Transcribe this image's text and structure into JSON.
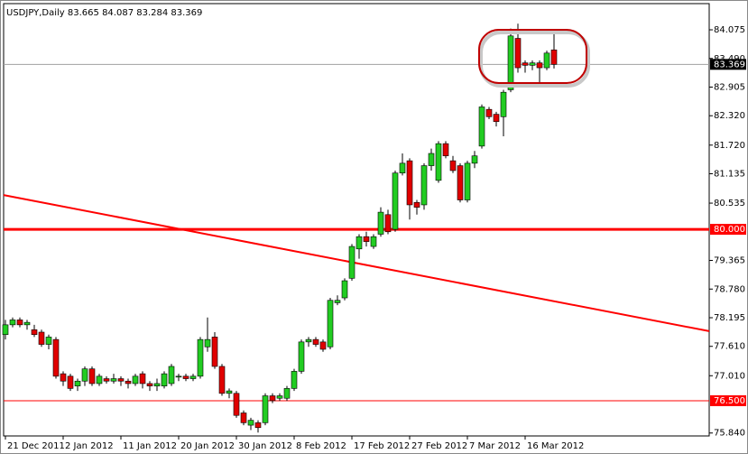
{
  "chart_data": {
    "type": "candlestick",
    "title": "USDJPY,Daily  83.665 84.087 83.284 83.369",
    "categories": [
      "21 Dec 2011",
      null,
      null,
      null,
      null,
      null,
      null,
      null,
      "2 Jan 2012",
      null,
      null,
      null,
      null,
      null,
      null,
      null,
      "11 Jan 2012",
      null,
      null,
      null,
      null,
      null,
      null,
      null,
      "20 Jan 2012",
      null,
      null,
      null,
      null,
      null,
      null,
      null,
      "30 Jan 2012",
      null,
      null,
      null,
      null,
      null,
      null,
      null,
      "8 Feb 2012",
      null,
      null,
      null,
      null,
      null,
      null,
      null,
      "17 Feb 2012",
      null,
      null,
      null,
      null,
      null,
      null,
      null,
      "27 Feb 2012",
      null,
      null,
      null,
      null,
      null,
      null,
      null,
      "7 Mar 2012",
      null,
      null,
      null,
      null,
      null,
      null,
      null,
      "16 Mar 2012",
      null,
      null,
      null,
      null
    ],
    "open": [
      77.85,
      78.05,
      78.15,
      78.05,
      77.95,
      77.9,
      77.65,
      77.75,
      77.05,
      77.0,
      76.8,
      76.9,
      77.15,
      76.85,
      76.95,
      76.9,
      76.95,
      76.9,
      76.85,
      77.05,
      76.85,
      76.8,
      76.8,
      76.85,
      77.0,
      77.0,
      76.95,
      77.0,
      77.6,
      77.8,
      77.2,
      76.65,
      76.65,
      76.25,
      76.0,
      76.05,
      76.05,
      76.6,
      76.55,
      76.55,
      76.75,
      77.1,
      77.7,
      77.75,
      77.7,
      77.6,
      78.5,
      78.6,
      79.0,
      79.6,
      79.85,
      79.65,
      79.9,
      80.3,
      80.0,
      81.15,
      81.4,
      80.55,
      80.5,
      81.3,
      81.0,
      81.75,
      81.4,
      81.3,
      80.6,
      81.35,
      81.7,
      82.45,
      82.35,
      82.3,
      82.85,
      83.9,
      83.4,
      83.35,
      83.4,
      83.3,
      83.665
    ],
    "high": [
      78.15,
      78.2,
      78.2,
      78.15,
      78.05,
      77.95,
      77.85,
      77.8,
      77.1,
      77.05,
      76.95,
      77.2,
      77.2,
      77.05,
      77.0,
      77.05,
      77.0,
      76.95,
      77.05,
      77.1,
      76.9,
      76.95,
      77.1,
      77.25,
      77.05,
      77.05,
      77.05,
      77.8,
      78.2,
      77.9,
      77.25,
      76.75,
      76.7,
      76.3,
      76.15,
      76.1,
      76.65,
      76.65,
      76.65,
      76.8,
      77.15,
      77.75,
      77.8,
      77.8,
      77.75,
      78.6,
      78.65,
      79.0,
      79.7,
      79.9,
      79.95,
      79.9,
      80.45,
      80.4,
      81.2,
      81.55,
      81.45,
      80.6,
      81.35,
      81.65,
      81.8,
      81.8,
      81.5,
      81.35,
      81.4,
      81.6,
      82.55,
      82.5,
      82.4,
      82.85,
      84.1,
      84.2,
      83.45,
      83.45,
      83.45,
      83.65,
      84.087
    ],
    "low": [
      77.75,
      78.0,
      78.0,
      77.95,
      77.8,
      77.6,
      77.55,
      76.95,
      76.8,
      76.7,
      76.7,
      76.8,
      76.8,
      76.8,
      76.85,
      76.85,
      76.8,
      76.75,
      76.8,
      76.75,
      76.7,
      76.7,
      76.75,
      76.8,
      76.9,
      76.9,
      76.9,
      76.95,
      77.5,
      77.15,
      76.6,
      76.55,
      76.15,
      76.0,
      75.9,
      75.85,
      76.0,
      76.45,
      76.5,
      76.5,
      76.7,
      77.05,
      77.6,
      77.6,
      77.5,
      77.55,
      78.45,
      78.55,
      78.95,
      79.4,
      79.65,
      79.6,
      79.85,
      79.9,
      79.95,
      81.1,
      80.2,
      80.3,
      80.4,
      81.2,
      80.95,
      81.45,
      81.15,
      80.55,
      80.55,
      81.25,
      81.65,
      82.25,
      82.1,
      81.9,
      82.8,
      83.2,
      83.2,
      83.25,
      83.0,
      83.25,
      83.284
    ],
    "close": [
      78.05,
      78.15,
      78.05,
      78.1,
      77.85,
      77.65,
      77.8,
      77.0,
      76.9,
      76.75,
      76.9,
      77.15,
      76.85,
      77.0,
      76.9,
      76.95,
      76.9,
      76.85,
      77.0,
      76.85,
      76.8,
      76.85,
      77.05,
      77.2,
      77.0,
      76.95,
      77.0,
      77.75,
      77.75,
      77.2,
      76.65,
      76.7,
      76.2,
      76.05,
      76.1,
      75.95,
      76.6,
      76.5,
      76.6,
      76.75,
      77.1,
      77.7,
      77.75,
      77.65,
      77.55,
      78.55,
      78.55,
      78.95,
      79.65,
      79.85,
      79.75,
      79.85,
      80.35,
      79.95,
      81.15,
      81.35,
      80.5,
      80.45,
      81.3,
      81.55,
      81.75,
      81.5,
      81.2,
      80.6,
      81.35,
      81.5,
      82.5,
      82.3,
      82.2,
      82.8,
      83.95,
      83.3,
      83.35,
      83.4,
      83.3,
      83.6,
      83.369
    ],
    "up_color": "#22cc22",
    "down_color": "#e00000",
    "ylim": [
      75.78,
      84.61
    ],
    "yticks": [
      84.075,
      {
        "value": 83.49,
        "label": "83.490"
      },
      82.905,
      {
        "value": 82.32,
        "label": "82.320"
      },
      {
        "value": 81.72,
        "label": "81.720"
      },
      81.135,
      80.535,
      79.365,
      {
        "value": 78.78,
        "label": "78.780"
      },
      78.195,
      {
        "value": 77.61,
        "label": "77.610"
      },
      {
        "value": 77.01,
        "label": "77.010"
      },
      {
        "value": 75.84,
        "label": "75.840"
      }
    ],
    "levels": [
      {
        "value": 80,
        "label": "80.000",
        "color": "#ff0000"
      },
      {
        "value": 76.5,
        "label": "76.500",
        "color": "#ff0000"
      },
      {
        "value": 83.369,
        "label": "83.369",
        "color": "#000000"
      }
    ],
    "trendline": {
      "start": 80.7,
      "end": 77.92,
      "color": "#ff0000"
    }
  }
}
